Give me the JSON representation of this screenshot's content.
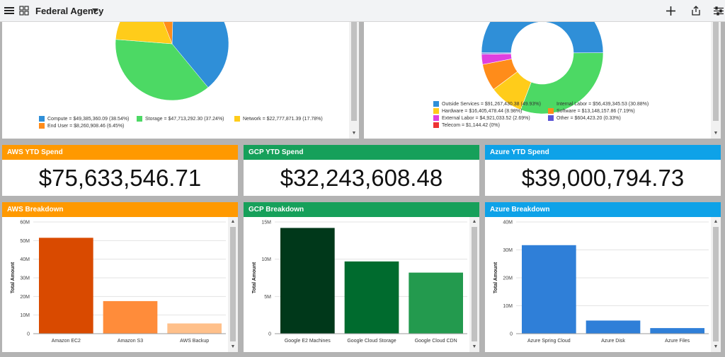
{
  "header": {
    "title": "Federal Agency",
    "menu_icon": "hamburger-icon",
    "grid_icon": "grid-icon",
    "dropdown_icon": "caret-down-icon",
    "actions": [
      "plus-icon",
      "share-icon",
      "filter-sliders-icon"
    ]
  },
  "pie1": {
    "legend": [
      {
        "label": "Compute = $49,385,360.09 (38.54%)",
        "color": "#2f8fd8"
      },
      {
        "label": "Storage = $47,713,292.30 (37.24%)",
        "color": "#4cd964"
      },
      {
        "label": "Network = $22,777,871.39 (17.78%)",
        "color": "#ffcc1a"
      },
      {
        "label": "End User = $8,260,908.46 (6.45%)",
        "color": "#ff8c1a"
      }
    ]
  },
  "donut": {
    "legend": [
      {
        "label": "Outside Services = $91,267,430.38 (49.93%)",
        "color": "#2f8fd8"
      },
      {
        "label": "Internal Labor = $56,439,345.53 (30.88%)",
        "color": "#4cd964"
      },
      {
        "label": "Hardware = $16,405,478.44 (8.98%)",
        "color": "#ffcc1a"
      },
      {
        "label": "Software = $13,148,157.86 (7.19%)",
        "color": "#ff8c1a"
      },
      {
        "label": "External Labor = $4,921,033.52 (2.69%)",
        "color": "#e040e0"
      },
      {
        "label": "Other = $604,423.20 (0.33%)",
        "color": "#5b55d6"
      },
      {
        "label": "Telecom = $1,144.42 (0%)",
        "color": "#ee3333"
      }
    ]
  },
  "cards": {
    "aws": {
      "title": "AWS YTD Spend",
      "value": "$75,633,546.71",
      "color": "#ff9900"
    },
    "gcp": {
      "title": "GCP YTD Spend",
      "value": "$32,243,608.48",
      "color": "#16a05a"
    },
    "azure": {
      "title": "Azure YTD Spend",
      "value": "$39,000,794.73",
      "color": "#0ea2e8"
    }
  },
  "breakdowns": {
    "aws": {
      "title": "AWS Breakdown",
      "color": "#ff9900"
    },
    "gcp": {
      "title": "GCP Breakdown",
      "color": "#16a05a"
    },
    "azure": {
      "title": "Azure Breakdown",
      "color": "#0ea2e8"
    }
  },
  "chart_data": [
    {
      "type": "pie",
      "title": "",
      "categories": [
        "Compute",
        "Storage",
        "Network",
        "End User"
      ],
      "values": [
        49385360.09,
        47713292.3,
        22777871.39,
        8260908.46
      ],
      "colors": [
        "#2f8fd8",
        "#4cd964",
        "#ffcc1a",
        "#ff8c1a"
      ]
    },
    {
      "type": "pie",
      "title": "",
      "categories": [
        "Outside Services",
        "Internal Labor",
        "Hardware",
        "Software",
        "External Labor",
        "Other",
        "Telecom"
      ],
      "values": [
        91267430.38,
        56439345.53,
        16405478.44,
        13148157.86,
        4921033.52,
        604423.2,
        1144.42
      ],
      "colors": [
        "#2f8fd8",
        "#4cd964",
        "#ffcc1a",
        "#ff8c1a",
        "#e040e0",
        "#5b55d6",
        "#ee3333"
      ]
    },
    {
      "type": "bar",
      "title": "AWS Breakdown",
      "ylabel": "Total Amount",
      "categories": [
        "Amazon EC2",
        "Amazon S3",
        "AWS Backup"
      ],
      "values": [
        51500000,
        17500000,
        5500000
      ],
      "colors": [
        "#d94a00",
        "#ff8c3a",
        "#ffc08a"
      ],
      "ylim": [
        0,
        60000000
      ],
      "yticks": [
        0,
        10000000,
        20000000,
        30000000,
        40000000,
        50000000,
        60000000
      ],
      "ytick_labels": [
        "0",
        "10M",
        "20M",
        "30M",
        "40M",
        "50M",
        "60M"
      ],
      "grid": true
    },
    {
      "type": "bar",
      "title": "GCP Breakdown",
      "ylabel": "Total Amount",
      "categories": [
        "Google E2 Machines",
        "Google Cloud Storage",
        "Google Cloud CDN"
      ],
      "values": [
        14200000,
        9700000,
        8200000
      ],
      "colors": [
        "#00381a",
        "#006b2e",
        "#239a4e"
      ],
      "ylim": [
        0,
        15000000
      ],
      "yticks": [
        0,
        5000000,
        10000000,
        15000000
      ],
      "ytick_labels": [
        "0",
        "5M",
        "10M",
        "15M"
      ],
      "grid": true
    },
    {
      "type": "bar",
      "title": "Azure Breakdown",
      "ylabel": "Total Amount",
      "categories": [
        "Azure Spring Cloud",
        "Azure Disk",
        "Azure Files"
      ],
      "values": [
        31700000,
        4700000,
        2000000
      ],
      "colors": [
        "#2f7fd8",
        "#2f7fd8",
        "#2f7fd8"
      ],
      "ylim": [
        0,
        40000000
      ],
      "yticks": [
        0,
        10000000,
        20000000,
        30000000,
        40000000
      ],
      "ytick_labels": [
        "0",
        "10M",
        "20M",
        "30M",
        "40M"
      ],
      "grid": true
    }
  ]
}
